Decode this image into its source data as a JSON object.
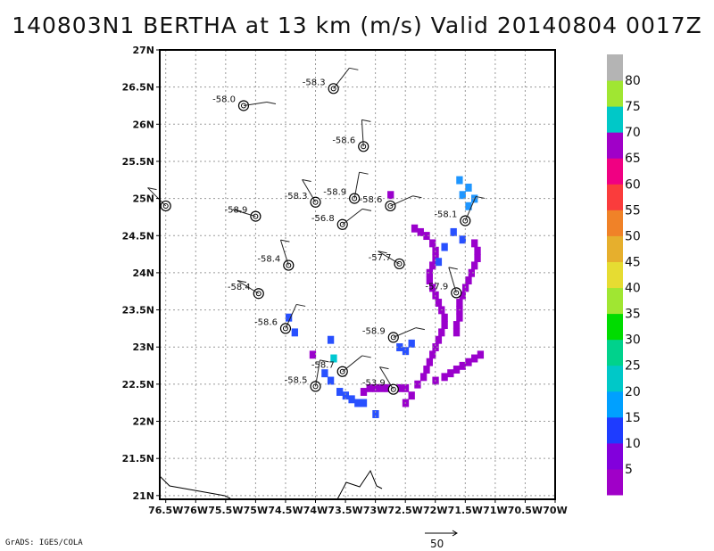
{
  "title": "140803N1 BERTHA at 13 km (m/s) Valid 20140804 0017Z",
  "footer": "GrADS: IGES/COLA",
  "ref_vector_label": "50",
  "colors": {
    "frame": "#000000",
    "grid": "#9a9a9a",
    "barb": "#222222"
  },
  "chart_data": {
    "type": "heatmap",
    "title": "140803N1 BERTHA at 13 km (m/s) Valid 20140804 0017Z",
    "xlabel": "",
    "ylabel": "",
    "xlim": [
      -76.6,
      -70.0
    ],
    "ylim": [
      20.95,
      27.0
    ],
    "grid": true,
    "x_ticks": [
      "76.5W",
      "76W",
      "75.5W",
      "75W",
      "74.5W",
      "74W",
      "73.5W",
      "73W",
      "72.5W",
      "72W",
      "71.5W",
      "71W",
      "70.5W",
      "70W"
    ],
    "x_tick_values": [
      -76.5,
      -76,
      -75.5,
      -75,
      -74.5,
      -74,
      -73.5,
      -73,
      -72.5,
      -72,
      -71.5,
      -71,
      -70.5,
      -70
    ],
    "y_ticks": [
      "21N",
      "21.5N",
      "22N",
      "22.5N",
      "23N",
      "23.5N",
      "24N",
      "24.5N",
      "25N",
      "25.5N",
      "26N",
      "26.5N",
      "27N"
    ],
    "y_tick_values": [
      21,
      21.5,
      22,
      22.5,
      23,
      23.5,
      24,
      24.5,
      25,
      25.5,
      26,
      26.5,
      27
    ],
    "colorbar": {
      "labels": [
        "5",
        "10",
        "15",
        "20",
        "25",
        "30",
        "35",
        "40",
        "45",
        "50",
        "55",
        "60",
        "65",
        "70",
        "75",
        "80"
      ],
      "colors": [
        "#a000c8",
        "#8200dc",
        "#1e3cff",
        "#00a0ff",
        "#00c8c8",
        "#00d28c",
        "#00dc00",
        "#a0e632",
        "#e6dc32",
        "#e6af2d",
        "#f08228",
        "#fa3c3c",
        "#f00082",
        "#a000c8",
        "#00c8c8",
        "#a0e632",
        "#b4b4b4"
      ]
    },
    "obs_points": [
      {
        "lon": -75.2,
        "lat": 26.25,
        "label": "-58.0"
      },
      {
        "lon": -73.7,
        "lat": 26.48,
        "label": "-58.3"
      },
      {
        "lon": -73.2,
        "lat": 25.7,
        "label": "-58.6"
      },
      {
        "lon": -76.5,
        "lat": 24.9,
        "label": ""
      },
      {
        "lon": -75.0,
        "lat": 24.76,
        "label": "-58.9"
      },
      {
        "lon": -74.0,
        "lat": 24.95,
        "label": "-58.3"
      },
      {
        "lon": -73.35,
        "lat": 25.0,
        "label": "-58.9"
      },
      {
        "lon": -73.55,
        "lat": 24.65,
        "label": "-56.8"
      },
      {
        "lon": -72.75,
        "lat": 24.9,
        "label": "-58.6"
      },
      {
        "lon": -71.5,
        "lat": 24.7,
        "label": "-58.1"
      },
      {
        "lon": -74.45,
        "lat": 24.1,
        "label": "-58.4"
      },
      {
        "lon": -72.6,
        "lat": 24.12,
        "label": "-57.7"
      },
      {
        "lon": -74.95,
        "lat": 23.72,
        "label": "-58.4"
      },
      {
        "lon": -71.65,
        "lat": 23.73,
        "label": "-57.9"
      },
      {
        "lon": -74.5,
        "lat": 23.25,
        "label": "-58.6"
      },
      {
        "lon": -72.7,
        "lat": 23.13,
        "label": "-58.9"
      },
      {
        "lon": -73.55,
        "lat": 22.67,
        "label": "-58.7"
      },
      {
        "lon": -74.0,
        "lat": 22.47,
        "label": "-58.5"
      },
      {
        "lon": -72.7,
        "lat": 22.43,
        "label": "-53.9"
      }
    ],
    "wind_cells": [
      {
        "lon": -72.75,
        "lat": 25.05,
        "v": 5
      },
      {
        "lon": -72.35,
        "lat": 24.6,
        "v": 5
      },
      {
        "lon": -72.25,
        "lat": 24.55,
        "v": 5
      },
      {
        "lon": -72.15,
        "lat": 24.5,
        "v": 5
      },
      {
        "lon": -72.05,
        "lat": 24.4,
        "v": 5
      },
      {
        "lon": -72.0,
        "lat": 24.3,
        "v": 5
      },
      {
        "lon": -72.0,
        "lat": 24.2,
        "v": 5
      },
      {
        "lon": -72.05,
        "lat": 24.1,
        "v": 5
      },
      {
        "lon": -72.1,
        "lat": 24.0,
        "v": 5
      },
      {
        "lon": -72.1,
        "lat": 23.9,
        "v": 5
      },
      {
        "lon": -72.05,
        "lat": 23.8,
        "v": 5
      },
      {
        "lon": -72.0,
        "lat": 23.7,
        "v": 5
      },
      {
        "lon": -71.95,
        "lat": 23.6,
        "v": 5
      },
      {
        "lon": -71.9,
        "lat": 23.5,
        "v": 5
      },
      {
        "lon": -71.85,
        "lat": 23.4,
        "v": 5
      },
      {
        "lon": -71.85,
        "lat": 23.3,
        "v": 5
      },
      {
        "lon": -71.9,
        "lat": 23.2,
        "v": 5
      },
      {
        "lon": -71.95,
        "lat": 23.1,
        "v": 5
      },
      {
        "lon": -72.0,
        "lat": 23.0,
        "v": 5
      },
      {
        "lon": -72.05,
        "lat": 22.9,
        "v": 5
      },
      {
        "lon": -72.1,
        "lat": 22.8,
        "v": 5
      },
      {
        "lon": -72.15,
        "lat": 22.7,
        "v": 5
      },
      {
        "lon": -72.2,
        "lat": 22.6,
        "v": 5
      },
      {
        "lon": -72.3,
        "lat": 22.5,
        "v": 5
      },
      {
        "lon": -72.4,
        "lat": 22.35,
        "v": 5
      },
      {
        "lon": -72.5,
        "lat": 22.25,
        "v": 5
      },
      {
        "lon": -71.35,
        "lat": 24.4,
        "v": 5
      },
      {
        "lon": -71.3,
        "lat": 24.3,
        "v": 5
      },
      {
        "lon": -71.3,
        "lat": 24.2,
        "v": 5
      },
      {
        "lon": -71.35,
        "lat": 24.1,
        "v": 5
      },
      {
        "lon": -71.4,
        "lat": 24.0,
        "v": 5
      },
      {
        "lon": -71.45,
        "lat": 23.9,
        "v": 5
      },
      {
        "lon": -71.5,
        "lat": 23.8,
        "v": 5
      },
      {
        "lon": -71.55,
        "lat": 23.7,
        "v": 5
      },
      {
        "lon": -71.6,
        "lat": 23.6,
        "v": 5
      },
      {
        "lon": -71.6,
        "lat": 23.5,
        "v": 5
      },
      {
        "lon": -71.6,
        "lat": 23.4,
        "v": 5
      },
      {
        "lon": -71.65,
        "lat": 23.3,
        "v": 5
      },
      {
        "lon": -71.65,
        "lat": 23.2,
        "v": 5
      },
      {
        "lon": -71.85,
        "lat": 22.6,
        "v": 5
      },
      {
        "lon": -71.75,
        "lat": 22.65,
        "v": 5
      },
      {
        "lon": -71.65,
        "lat": 22.7,
        "v": 5
      },
      {
        "lon": -71.55,
        "lat": 22.75,
        "v": 5
      },
      {
        "lon": -71.45,
        "lat": 22.8,
        "v": 5
      },
      {
        "lon": -71.35,
        "lat": 22.85,
        "v": 5
      },
      {
        "lon": -71.25,
        "lat": 22.9,
        "v": 5
      },
      {
        "lon": -72.0,
        "lat": 22.55,
        "v": 5
      },
      {
        "lon": -73.1,
        "lat": 22.45,
        "v": 5
      },
      {
        "lon": -73.0,
        "lat": 22.45,
        "v": 5
      },
      {
        "lon": -72.9,
        "lat": 22.45,
        "v": 5
      },
      {
        "lon": -72.8,
        "lat": 22.45,
        "v": 5
      },
      {
        "lon": -72.6,
        "lat": 22.45,
        "v": 5
      },
      {
        "lon": -72.5,
        "lat": 22.45,
        "v": 5
      },
      {
        "lon": -73.2,
        "lat": 22.4,
        "v": 5
      },
      {
        "lon": -74.05,
        "lat": 22.9,
        "v": 5
      },
      {
        "lon": -71.7,
        "lat": 24.55,
        "v": 10
      },
      {
        "lon": -71.55,
        "lat": 24.45,
        "v": 10
      },
      {
        "lon": -71.85,
        "lat": 24.35,
        "v": 10
      },
      {
        "lon": -71.95,
        "lat": 24.15,
        "v": 10
      },
      {
        "lon": -72.4,
        "lat": 23.05,
        "v": 10
      },
      {
        "lon": -72.6,
        "lat": 23.0,
        "v": 10
      },
      {
        "lon": -72.5,
        "lat": 22.95,
        "v": 10
      },
      {
        "lon": -74.45,
        "lat": 23.4,
        "v": 10
      },
      {
        "lon": -74.35,
        "lat": 23.2,
        "v": 10
      },
      {
        "lon": -73.75,
        "lat": 23.1,
        "v": 10
      },
      {
        "lon": -73.85,
        "lat": 22.65,
        "v": 10
      },
      {
        "lon": -73.75,
        "lat": 22.55,
        "v": 10
      },
      {
        "lon": -73.6,
        "lat": 22.4,
        "v": 10
      },
      {
        "lon": -73.5,
        "lat": 22.35,
        "v": 10
      },
      {
        "lon": -73.4,
        "lat": 22.3,
        "v": 10
      },
      {
        "lon": -73.3,
        "lat": 22.25,
        "v": 10
      },
      {
        "lon": -73.2,
        "lat": 22.25,
        "v": 10
      },
      {
        "lon": -73.0,
        "lat": 22.1,
        "v": 10
      },
      {
        "lon": -71.6,
        "lat": 25.25,
        "v": 15
      },
      {
        "lon": -71.45,
        "lat": 25.15,
        "v": 15
      },
      {
        "lon": -71.35,
        "lat": 25.0,
        "v": 15
      },
      {
        "lon": -71.45,
        "lat": 24.9,
        "v": 15
      },
      {
        "lon": -71.55,
        "lat": 25.05,
        "v": 15
      },
      {
        "lon": -73.7,
        "lat": 22.85,
        "v": 20
      }
    ]
  }
}
